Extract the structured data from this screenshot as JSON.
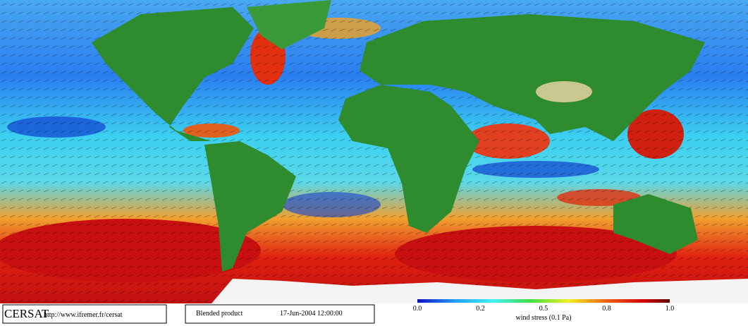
{
  "footer": {
    "logo": "CERSAT",
    "url": "http://www.ifremer.fr/cersat",
    "product": "Blended product",
    "date": "17-Jun-2004 12:00:00"
  },
  "colorbar": {
    "ticks": [
      "0.0",
      "0.2",
      "0.5",
      "0.8",
      "1.0"
    ],
    "label": "wind stress (0.1 Pa)"
  }
}
